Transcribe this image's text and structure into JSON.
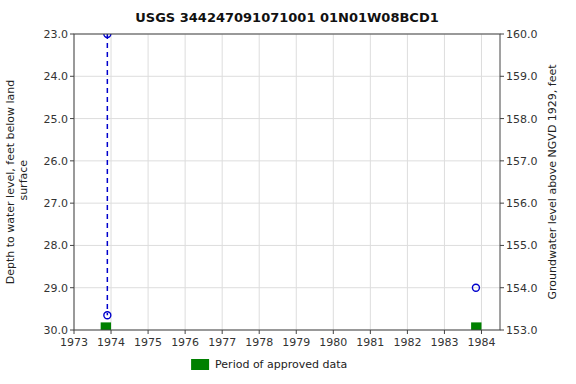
{
  "chart_data": {
    "type": "scatter",
    "title": "USGS 344247091071001 01N01W08BCD1",
    "ylabel": "Depth to water level, feet below land\n surface",
    "y2label": "Groundwater level above NGVD 1929, feet",
    "xlim": [
      1973.0,
      1984.5
    ],
    "xticks": [
      1973,
      1974,
      1975,
      1976,
      1977,
      1978,
      1979,
      1980,
      1981,
      1982,
      1983,
      1984
    ],
    "ylim": [
      30.0,
      23.0
    ],
    "yticks": [
      {
        "value": 23.0,
        "label": "23.0"
      },
      {
        "value": 24.0,
        "label": "24.0"
      },
      {
        "value": 25.0,
        "label": "25.0"
      },
      {
        "value": 26.0,
        "label": "26.0"
      },
      {
        "value": 27.0,
        "label": "27.0"
      },
      {
        "value": 28.0,
        "label": "28.0"
      },
      {
        "value": 29.0,
        "label": "29.0"
      },
      {
        "value": 30.0,
        "label": "30.0"
      }
    ],
    "y2lim": [
      153.0,
      160.0
    ],
    "y2ticks": [
      {
        "value": 153.0,
        "label": "153.0"
      },
      {
        "value": 154.0,
        "label": "154.0"
      },
      {
        "value": 155.0,
        "label": "155.0"
      },
      {
        "value": 156.0,
        "label": "156.0"
      },
      {
        "value": 157.0,
        "label": "157.0"
      },
      {
        "value": 158.0,
        "label": "158.0"
      },
      {
        "value": 159.0,
        "label": "159.0"
      },
      {
        "value": 160.0,
        "label": "160.0"
      }
    ],
    "grid": true,
    "legend": "bottom",
    "series": [
      {
        "type": "scatter",
        "color": "#0000cc",
        "marker": "circle",
        "x": [
          1973.9,
          1973.9,
          1983.85
        ],
        "values": [
          23.0,
          29.65,
          29.0
        ]
      },
      {
        "type": "line",
        "color": "#0000cc",
        "line_style": "dashed",
        "x": [
          1973.9,
          1973.9
        ],
        "values": [
          23.0,
          29.65
        ]
      },
      {
        "name": "Period of approved data",
        "type": "bar",
        "color": "#008000",
        "x": [
          1973.72,
          1983.72
        ],
        "widths": [
          0.28,
          0.28
        ],
        "base": 30.0,
        "height": 0.18
      }
    ]
  }
}
